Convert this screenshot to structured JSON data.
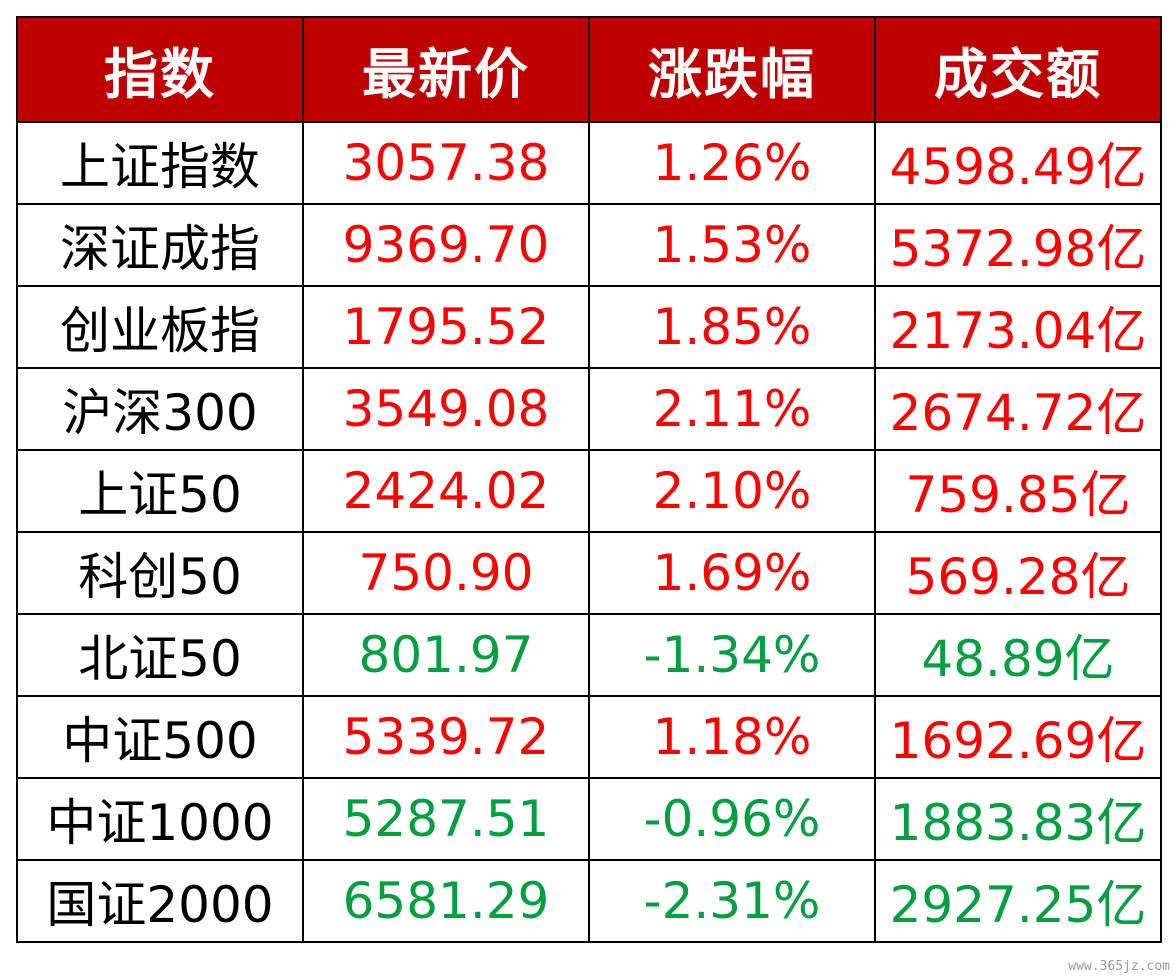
{
  "table": {
    "headers": [
      "指数",
      "最新价",
      "涨跌幅",
      "成交额"
    ],
    "rows": [
      {
        "name": "上证指数",
        "price": "3057.38",
        "change": "1.26%",
        "turnover": "4598.49亿",
        "trend": "up"
      },
      {
        "name": "深证成指",
        "price": "9369.70",
        "change": "1.53%",
        "turnover": "5372.98亿",
        "trend": "up"
      },
      {
        "name": "创业板指",
        "price": "1795.52",
        "change": "1.85%",
        "turnover": "2173.04亿",
        "trend": "up"
      },
      {
        "name": "沪深300",
        "price": "3549.08",
        "change": "2.11%",
        "turnover": "2674.72亿",
        "trend": "up"
      },
      {
        "name": "上证50",
        "price": "2424.02",
        "change": "2.10%",
        "turnover": "759.85亿",
        "trend": "up"
      },
      {
        "name": "科创50",
        "price": "750.90",
        "change": "1.69%",
        "turnover": "569.28亿",
        "trend": "up"
      },
      {
        "name": "北证50",
        "price": "801.97",
        "change": "-1.34%",
        "turnover": "48.89亿",
        "trend": "down"
      },
      {
        "name": "中证500",
        "price": "5339.72",
        "change": "1.18%",
        "turnover": "1692.69亿",
        "trend": "up"
      },
      {
        "name": "中证1000",
        "price": "5287.51",
        "change": "-0.96%",
        "turnover": "1883.83亿",
        "trend": "down"
      },
      {
        "name": "国证2000",
        "price": "6581.29",
        "change": "-2.31%",
        "turnover": "2927.25亿",
        "trend": "down"
      }
    ]
  },
  "colors": {
    "header_bg": "#c00000",
    "header_text": "#ffffff",
    "up": "#ff0000",
    "down": "#00a040",
    "name": "#000000",
    "border": "#000000"
  },
  "watermark": "www.365jz.com"
}
